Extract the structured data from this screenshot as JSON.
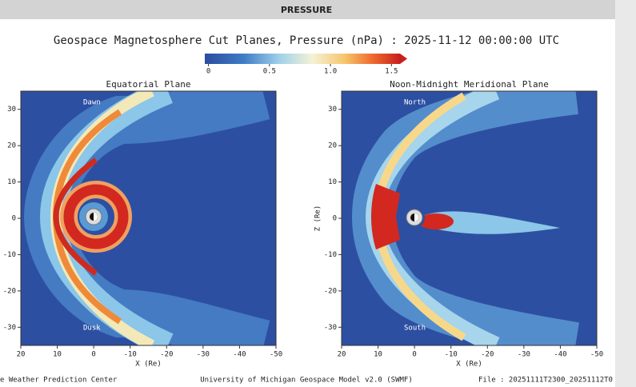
{
  "header": {
    "title": "PRESSURE"
  },
  "title": "Geospace Magnetosphere Cut Planes, Pressure (nPa) : 2025-11-12 00:00:00 UTC",
  "colorbar": {
    "range": [
      -0.03,
      1.57
    ],
    "ticks": [
      0,
      0.5,
      {
        "value": 1,
        "label": "1.0"
      },
      1.5
    ]
  },
  "panels": [
    {
      "title": "Equatorial Plane",
      "xlabel": "X (Re)",
      "xlim": [
        20,
        -50
      ],
      "ylim": [
        -35,
        35
      ],
      "xticks": [
        20,
        10,
        0,
        -10,
        -20,
        -30,
        -40,
        -50
      ],
      "yticks": [
        30,
        20,
        10,
        0,
        -10,
        -20,
        -30
      ],
      "annotations": [
        "Dawn",
        "Dusk"
      ]
    },
    {
      "title": "Noon-Midnight Meridional Plane",
      "xlabel": "X (Re)",
      "ylabel": "Z (Re)",
      "xlim": [
        20,
        -50
      ],
      "ylim": [
        -35,
        35
      ],
      "xticks": [
        20,
        10,
        0,
        -10,
        -20,
        -30,
        -40,
        -50
      ],
      "yticks": [
        30,
        20,
        10,
        0,
        -10,
        -20,
        -30
      ],
      "annotations": [
        "North",
        "South"
      ]
    }
  ],
  "footer": {
    "left": "e Weather Prediction Center",
    "center": "University of Michigan Geospace Model v2.0 (SWMF)",
    "right": "File : 20251111T2300_20251112T0"
  }
}
